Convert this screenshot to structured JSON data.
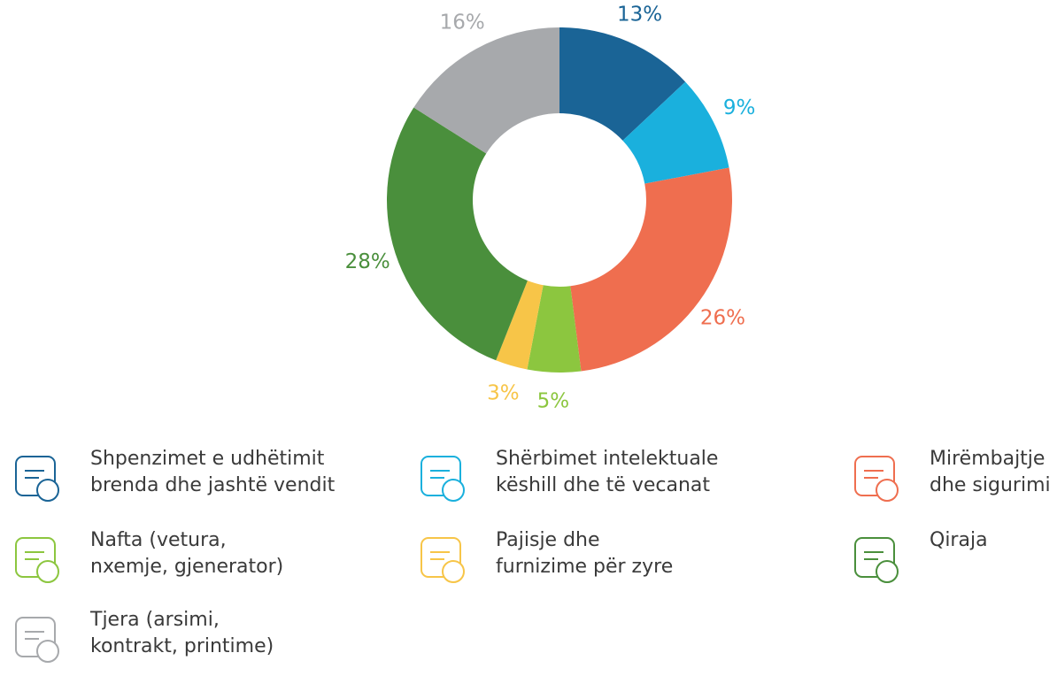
{
  "chart_data": {
    "type": "pie",
    "series": [
      {
        "name": "Shpenzimet e udhëtimit\nbrenda dhe jashtë vendit",
        "color": "#1a6496",
        "value": 13,
        "value_label": "13%"
      },
      {
        "name": "Shërbimet intelektuale\nkëshill dhe të vecanat",
        "color": "#1ab0dd",
        "value": 9,
        "value_label": "9%"
      },
      {
        "name": "Mirëmbajtje\ndhe sigurimi",
        "color": "#ef6e4f",
        "value": 26,
        "value_label": "26%"
      },
      {
        "name": "Nafta (vetura,\nnxemje, gjenerator)",
        "color": "#8cc63f",
        "value": 5,
        "value_label": "5%"
      },
      {
        "name": "Pajisje dhe\nfurnizime për zyre",
        "color": "#f7c548",
        "value": 3,
        "value_label": "3%"
      },
      {
        "name": "Qiraja",
        "color": "#4a8f3c",
        "value": 28,
        "value_label": "28%"
      },
      {
        "name": "Tjera (arsimi,\nkontrakt, printime)",
        "color": "#a7a9ac",
        "value": 16,
        "value_label": "16%"
      }
    ]
  }
}
